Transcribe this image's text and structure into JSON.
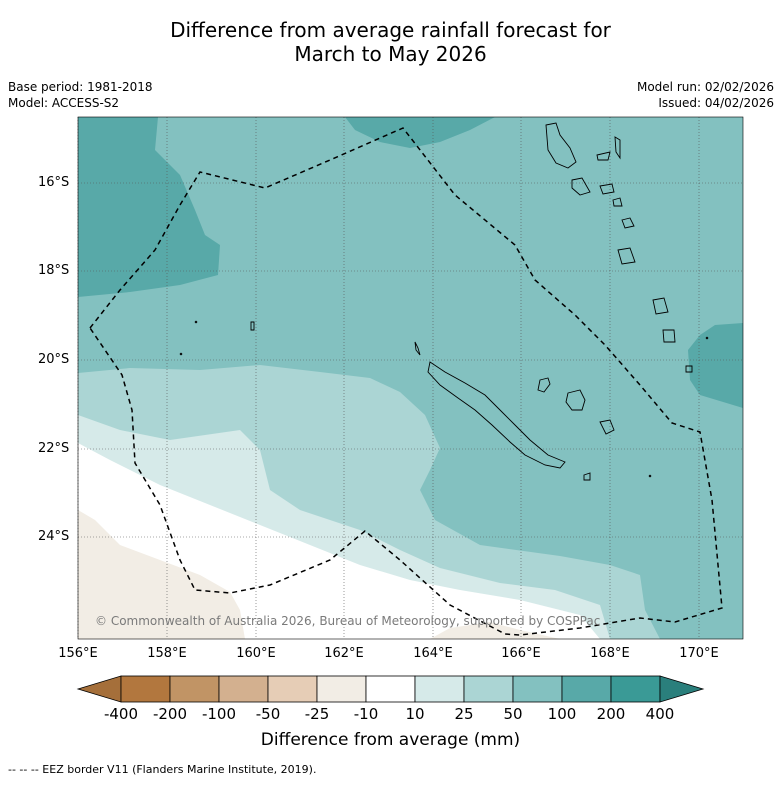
{
  "title_line1": "Difference from average rainfall forecast for",
  "title_line2": "March to May 2026",
  "meta_left": {
    "base_period": "Base period: 1981-2018",
    "model": "Model: ACCESS-S2"
  },
  "meta_right": {
    "model_run": "Model run: 02/02/2026",
    "issued": "Issued: 04/02/2026"
  },
  "latitude_labels": [
    "16°S",
    "18°S",
    "20°S",
    "22°S",
    "24°S"
  ],
  "longitude_labels": [
    "156°E",
    "158°E",
    "160°E",
    "162°E",
    "164°E",
    "166°E",
    "168°E",
    "170°E"
  ],
  "copyright": "© Commonwealth of Australia 2026, Bureau of Meteorology, supported by COSPPac",
  "colorbar": {
    "ticks": [
      "-400",
      "-200",
      "-100",
      "-50",
      "-25",
      "-10",
      "10",
      "25",
      "50",
      "100",
      "200",
      "400"
    ],
    "colors": [
      "#a56f3a",
      "#b2773e",
      "#c19465",
      "#d3b08f",
      "#e6cdb6",
      "#f2ede5",
      "#ffffff",
      "#d6eae9",
      "#abd5d4",
      "#83c1c0",
      "#58a9a8",
      "#3a9a96",
      "#2a7f7c"
    ],
    "label": "Difference from average (mm)"
  },
  "footnote": "--  --  -- EEZ border V11 (Flanders Marine Institute, 2019)."
}
